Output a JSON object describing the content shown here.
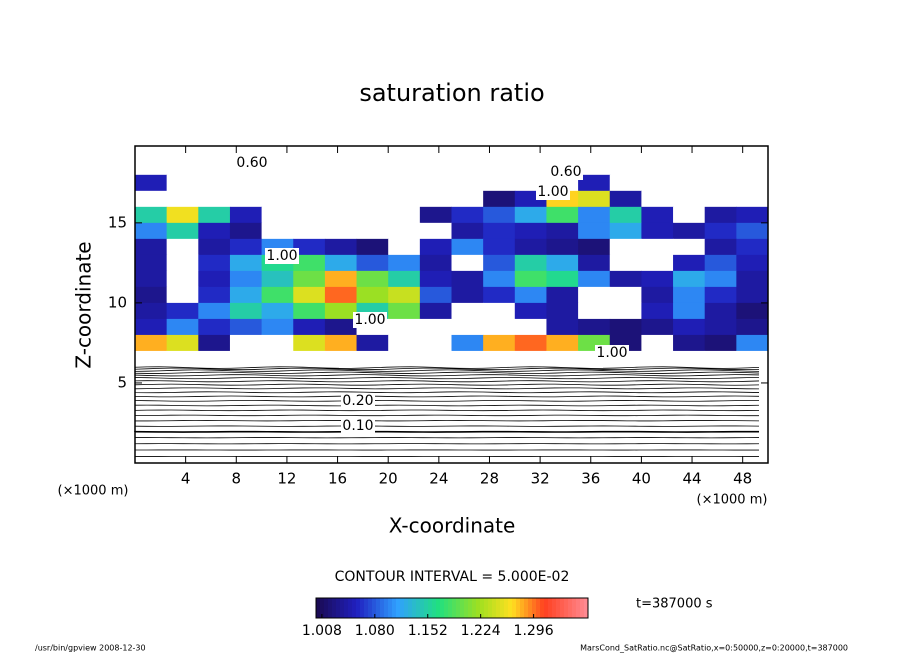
{
  "chart_data": {
    "type": "heatmap",
    "title": "saturation ratio",
    "x_label": "X-coordinate",
    "y_label": "Z-coordinate",
    "x_unit": "(×1000 m)",
    "y_unit": "(×1000 m)",
    "xlim": [
      0,
      50
    ],
    "ylim": [
      0,
      19.8
    ],
    "xticks": [
      4,
      8,
      12,
      16,
      20,
      24,
      28,
      32,
      36,
      40,
      44,
      48
    ],
    "yticks": [
      5,
      10,
      15
    ],
    "x": [
      1.25,
      3.75,
      6.25,
      8.75,
      11.25,
      13.75,
      16.25,
      18.75,
      21.25,
      23.75,
      26.25,
      28.75,
      31.25,
      33.75,
      36.25,
      38.75,
      41.25,
      43.75,
      46.25,
      48.75
    ],
    "y": [
      18.5,
      17.5,
      16.5,
      15.5,
      14.5,
      13.5,
      12.5,
      11.5,
      10.5,
      9.5,
      8.5,
      7.5,
      6.5
    ],
    "z": [
      [
        0.9,
        0.8,
        0.7,
        0.7,
        0.6,
        0.6,
        0.6,
        0.6,
        0.6,
        0.6,
        0.6,
        0.6,
        0.6,
        0.7,
        0.7,
        0.8,
        0.8,
        0.8,
        0.8,
        0.8
      ],
      [
        1.05,
        0.9,
        0.8,
        0.7,
        0.6,
        0.6,
        0.6,
        0.6,
        0.6,
        0.6,
        0.6,
        0.7,
        0.7,
        0.9,
        1.05,
        0.8,
        0.8,
        0.8,
        0.8,
        0.9
      ],
      [
        0.9,
        0.8,
        0.7,
        0.6,
        0.6,
        0.6,
        0.6,
        0.6,
        0.6,
        0.7,
        0.8,
        1.02,
        1.05,
        1.27,
        1.25,
        1.04,
        0.8,
        0.8,
        0.8,
        0.9
      ],
      [
        1.15,
        1.26,
        1.15,
        1.05,
        0.9,
        0.8,
        0.8,
        0.7,
        0.7,
        1.03,
        1.06,
        1.08,
        1.12,
        1.18,
        1.1,
        1.15,
        1.05,
        0.9,
        1.04,
        1.05
      ],
      [
        1.1,
        1.15,
        1.05,
        1.03,
        0.9,
        0.9,
        0.9,
        0.8,
        0.8,
        0.9,
        1.04,
        1.06,
        1.05,
        1.04,
        1.1,
        1.12,
        1.05,
        1.04,
        1.06,
        1.08
      ],
      [
        1.04,
        0.9,
        1.04,
        1.06,
        1.1,
        1.06,
        1.04,
        1.02,
        0.9,
        1.05,
        1.1,
        1.06,
        1.04,
        1.03,
        1.02,
        0.9,
        0.9,
        0.9,
        1.04,
        1.06
      ],
      [
        1.04,
        0.9,
        1.06,
        1.12,
        1.16,
        1.18,
        1.12,
        1.08,
        1.1,
        1.04,
        0.9,
        1.08,
        1.15,
        1.12,
        1.04,
        0.9,
        0.8,
        1.05,
        1.08,
        1.05
      ],
      [
        1.04,
        0.9,
        1.05,
        1.1,
        1.14,
        1.2,
        1.28,
        1.2,
        1.15,
        1.05,
        1.04,
        1.1,
        1.18,
        1.16,
        1.1,
        1.04,
        1.05,
        1.12,
        1.1,
        1.04
      ],
      [
        1.03,
        0.9,
        1.06,
        1.12,
        1.18,
        1.25,
        1.3,
        1.22,
        1.24,
        1.08,
        1.04,
        1.06,
        1.1,
        1.04,
        0.9,
        0.8,
        1.04,
        1.1,
        1.06,
        1.04
      ],
      [
        1.04,
        1.06,
        1.1,
        1.15,
        1.12,
        1.18,
        1.22,
        1.15,
        1.2,
        1.04,
        0.8,
        0.9,
        1.05,
        1.04,
        0.9,
        0.8,
        1.05,
        1.1,
        1.04,
        1.02
      ],
      [
        1.05,
        1.1,
        1.06,
        1.08,
        1.1,
        1.05,
        1.03,
        0.9,
        0.8,
        0.8,
        0.8,
        0.8,
        0.8,
        1.04,
        1.03,
        1.02,
        1.03,
        1.05,
        1.04,
        1.03
      ],
      [
        1.28,
        1.25,
        1.03,
        0.9,
        0.9,
        1.25,
        1.28,
        1.04,
        0.8,
        0.8,
        1.1,
        1.28,
        1.3,
        1.28,
        1.2,
        1.02,
        0.9,
        1.03,
        1.02,
        1.1
      ],
      [
        0.98,
        0.98,
        0.95,
        0.95,
        0.95,
        0.95,
        0.95,
        0.95,
        0.95,
        0.95,
        0.95,
        0.95,
        0.95,
        0.95,
        0.95,
        0.95,
        0.95,
        0.95,
        0.95,
        0.98
      ]
    ],
    "clim": [
      1.0,
      1.37
    ],
    "cticks": [
      1.008,
      {
        "value": 1.08,
        "label": "1.080"
      },
      1.152,
      1.224,
      1.296
    ],
    "contour_interval": "CONTOUR INTERVAL = 5.000E-02",
    "contour_labels": [
      {
        "value": 0.1,
        "label": "0.10"
      },
      {
        "value": 0.2,
        "label": "0.20"
      },
      {
        "value": 1,
        "label": "1.00"
      },
      {
        "value": 1,
        "label": "1.00"
      },
      {
        "value": 1,
        "label": "1.00"
      },
      {
        "value": 1,
        "label": "1.00"
      },
      {
        "value": 0.6,
        "label": "0.60"
      },
      {
        "value": 0.6,
        "label": "0.60"
      }
    ],
    "time_label": "t=387000 s",
    "footer_left": "/usr/bin/gpview   2008-12-30",
    "footer_right": "MarsCond_SatRatio.nc@SatRatio,x=0:50000,z=0:20000,t=387000"
  }
}
